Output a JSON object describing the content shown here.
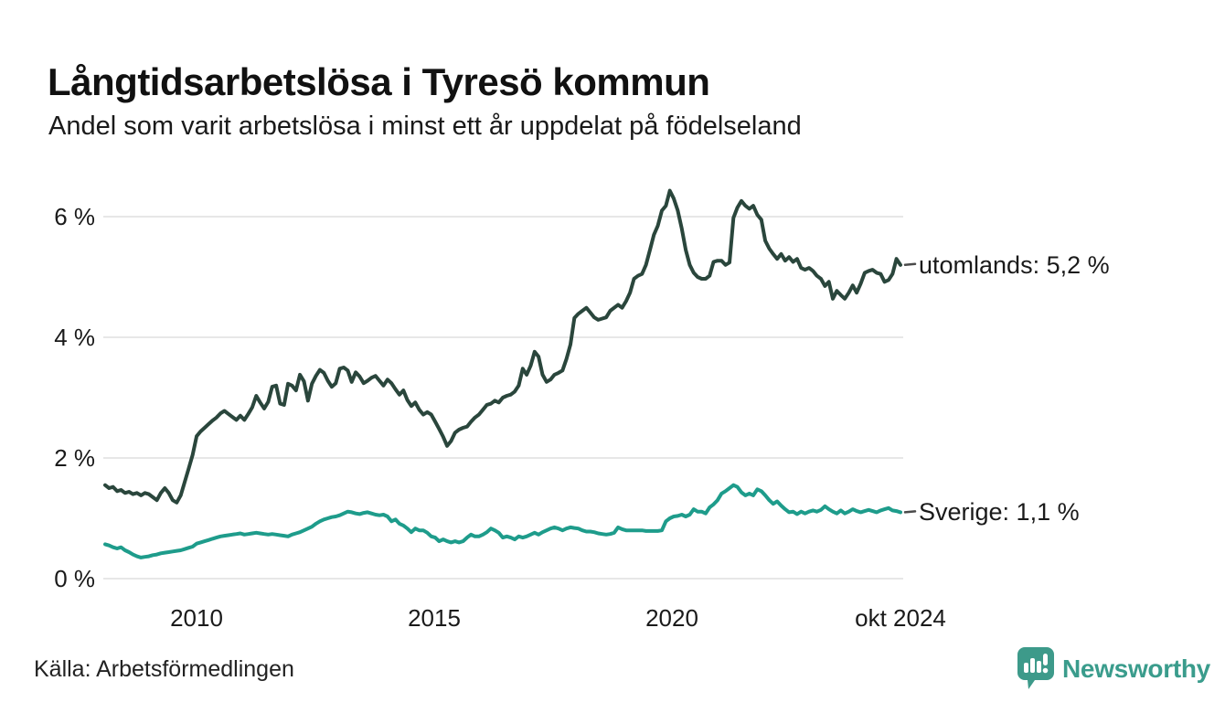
{
  "title": "Långtidsarbetslösa i Tyresö kommun",
  "subtitle": "Andel som varit arbetslösa i minst ett år uppdelat på födelseland",
  "source": "Källa: Arbetsförmedlingen",
  "brand": {
    "name": "Newsworthy",
    "color": "#3a9c8c",
    "icon": "bar-chart-speech-bubble-icon"
  },
  "colors": {
    "utomlands_line": "#2a463c",
    "sverige_line": "#1e9c8b",
    "grid": "#e7e7e7",
    "label_dash": "#4a4a4a",
    "text": "#1a1a1a"
  },
  "chart_data": {
    "type": "line",
    "title": "Långtidsarbetslösa i Tyresö kommun",
    "subtitle": "Andel som varit arbetslösa i minst ett år uppdelat på födelseland",
    "x_start": "2008-02",
    "x_end": "2024-10",
    "x_frequency": "monthly",
    "x_tick_labels": [
      "2010",
      "2015",
      "2020",
      "okt 2024"
    ],
    "y_tick_labels": [
      "0 %",
      "2 %",
      "4 %",
      "6 %"
    ],
    "y_ticks": [
      0,
      2,
      4,
      6
    ],
    "ylim": [
      0,
      6.7
    ],
    "grid": "horizontal",
    "legend_position": "end-of-line-labels",
    "series": [
      {
        "name": "utomlands",
        "label": "utomlands: 5,2 %",
        "last_value": "5,2 %",
        "color": "#2a463c",
        "values": [
          1.55,
          1.5,
          1.52,
          1.45,
          1.47,
          1.42,
          1.44,
          1.4,
          1.42,
          1.38,
          1.42,
          1.4,
          1.35,
          1.3,
          1.42,
          1.5,
          1.42,
          1.3,
          1.26,
          1.38,
          1.6,
          1.82,
          2.05,
          2.36,
          2.44,
          2.5,
          2.56,
          2.62,
          2.67,
          2.74,
          2.78,
          2.73,
          2.68,
          2.63,
          2.7,
          2.63,
          2.73,
          2.84,
          3.03,
          2.92,
          2.82,
          2.93,
          3.18,
          3.2,
          2.9,
          2.88,
          3.23,
          3.2,
          3.12,
          3.38,
          3.27,
          2.95,
          3.23,
          3.36,
          3.46,
          3.41,
          3.28,
          3.18,
          3.24,
          3.48,
          3.5,
          3.45,
          3.26,
          3.42,
          3.35,
          3.24,
          3.28,
          3.33,
          3.36,
          3.28,
          3.2,
          3.3,
          3.24,
          3.14,
          3.05,
          3.12,
          2.96,
          2.86,
          2.92,
          2.8,
          2.72,
          2.76,
          2.72,
          2.6,
          2.48,
          2.35,
          2.2,
          2.28,
          2.42,
          2.47,
          2.5,
          2.52,
          2.6,
          2.67,
          2.72,
          2.8,
          2.88,
          2.9,
          2.95,
          2.92,
          3.0,
          3.03,
          3.05,
          3.1,
          3.2,
          3.48,
          3.38,
          3.53,
          3.76,
          3.68,
          3.38,
          3.26,
          3.3,
          3.38,
          3.41,
          3.45,
          3.64,
          3.88,
          4.32,
          4.39,
          4.44,
          4.49,
          4.41,
          4.33,
          4.29,
          4.31,
          4.33,
          4.44,
          4.49,
          4.54,
          4.49,
          4.6,
          4.74,
          4.97,
          5.02,
          5.05,
          5.2,
          5.45,
          5.7,
          5.85,
          6.1,
          6.18,
          6.43,
          6.3,
          6.1,
          5.8,
          5.45,
          5.2,
          5.07,
          5.0,
          4.97,
          4.97,
          5.02,
          5.25,
          5.27,
          5.27,
          5.2,
          5.24,
          5.98,
          6.15,
          6.26,
          6.18,
          6.13,
          6.18,
          6.03,
          5.95,
          5.6,
          5.47,
          5.38,
          5.3,
          5.38,
          5.27,
          5.33,
          5.25,
          5.3,
          5.15,
          5.12,
          5.15,
          5.1,
          5.02,
          4.97,
          4.85,
          4.92,
          4.64,
          4.77,
          4.7,
          4.64,
          4.74,
          4.86,
          4.74,
          4.89,
          5.07,
          5.1,
          5.12,
          5.07,
          5.05,
          4.92,
          4.95,
          5.05,
          5.3,
          5.2
        ]
      },
      {
        "name": "Sverige",
        "label": "Sverige: 1,1 %",
        "last_value": "1,1 %",
        "color": "#1e9c8b",
        "values": [
          0.57,
          0.55,
          0.52,
          0.5,
          0.52,
          0.47,
          0.44,
          0.4,
          0.37,
          0.35,
          0.36,
          0.37,
          0.39,
          0.4,
          0.42,
          0.43,
          0.44,
          0.45,
          0.46,
          0.47,
          0.49,
          0.51,
          0.53,
          0.58,
          0.6,
          0.62,
          0.64,
          0.66,
          0.68,
          0.7,
          0.71,
          0.72,
          0.73,
          0.74,
          0.75,
          0.73,
          0.74,
          0.75,
          0.76,
          0.75,
          0.74,
          0.73,
          0.74,
          0.73,
          0.72,
          0.71,
          0.7,
          0.73,
          0.75,
          0.77,
          0.8,
          0.83,
          0.86,
          0.91,
          0.95,
          0.98,
          1.0,
          1.02,
          1.03,
          1.05,
          1.08,
          1.11,
          1.1,
          1.08,
          1.07,
          1.09,
          1.1,
          1.08,
          1.06,
          1.05,
          1.06,
          1.03,
          0.95,
          0.98,
          0.91,
          0.88,
          0.83,
          0.77,
          0.83,
          0.8,
          0.8,
          0.76,
          0.7,
          0.68,
          0.62,
          0.65,
          0.62,
          0.6,
          0.62,
          0.6,
          0.62,
          0.68,
          0.73,
          0.7,
          0.7,
          0.73,
          0.77,
          0.83,
          0.8,
          0.76,
          0.68,
          0.7,
          0.68,
          0.65,
          0.7,
          0.68,
          0.7,
          0.73,
          0.76,
          0.73,
          0.77,
          0.8,
          0.83,
          0.85,
          0.83,
          0.8,
          0.83,
          0.85,
          0.84,
          0.83,
          0.8,
          0.78,
          0.78,
          0.77,
          0.75,
          0.74,
          0.73,
          0.74,
          0.76,
          0.85,
          0.82,
          0.8,
          0.8,
          0.8,
          0.8,
          0.8,
          0.79,
          0.79,
          0.79,
          0.79,
          0.8,
          0.95,
          1.0,
          1.03,
          1.04,
          1.06,
          1.03,
          1.06,
          1.15,
          1.11,
          1.11,
          1.08,
          1.18,
          1.23,
          1.3,
          1.41,
          1.45,
          1.5,
          1.55,
          1.52,
          1.43,
          1.38,
          1.41,
          1.38,
          1.48,
          1.45,
          1.38,
          1.3,
          1.24,
          1.28,
          1.21,
          1.15,
          1.1,
          1.11,
          1.07,
          1.11,
          1.08,
          1.11,
          1.13,
          1.11,
          1.14,
          1.2,
          1.15,
          1.11,
          1.08,
          1.13,
          1.08,
          1.11,
          1.15,
          1.12,
          1.1,
          1.12,
          1.14,
          1.12,
          1.1,
          1.13,
          1.15,
          1.17,
          1.13,
          1.12,
          1.1
        ]
      }
    ]
  }
}
